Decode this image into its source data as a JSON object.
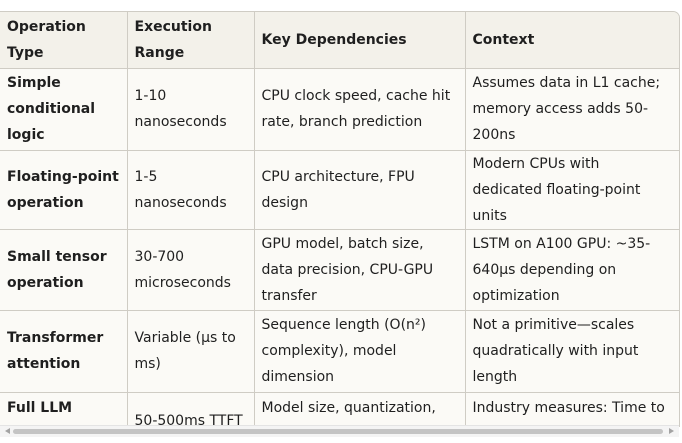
{
  "table": {
    "headers": [
      "Operation Type",
      "Execution Range",
      "Key Dependencies",
      "Context"
    ],
    "rows": [
      {
        "operation": "Simple conditional logic",
        "range": "1-10 nanoseconds",
        "dependencies": "CPU clock speed, cache hit rate, branch prediction",
        "context": "Assumes data in L1 cache; memory access adds 50-200ns"
      },
      {
        "operation": "Floating-point operation",
        "range": "1-5 nanoseconds",
        "dependencies": "CPU architecture, FPU design",
        "context": "Modern CPUs with dedicated floating-point units"
      },
      {
        "operation": "Small tensor operation",
        "range": "30-700 microseconds",
        "dependencies": "GPU model, batch size, data precision, CPU-GPU transfer",
        "context": "LSTM on A100 GPU: ~35-640μs depending on optimization"
      },
      {
        "operation": "Transformer attention",
        "range": "Variable (μs to ms)",
        "dependencies": "Sequence length (O(n²) complexity), model dimension",
        "context": "Not a primitive—scales quadratically with input length"
      },
      {
        "operation": "Full LLM inference",
        "range": "50-500ms TTFT",
        "dependencies": "Model size, quantization, GPU model, KV cache",
        "context": "Industry measures: Time to First Token + tokens/second"
      }
    ]
  },
  "scrollbar": {
    "left_icon": "scroll-left-arrow-icon",
    "right_icon": "scroll-right-arrow-icon"
  }
}
